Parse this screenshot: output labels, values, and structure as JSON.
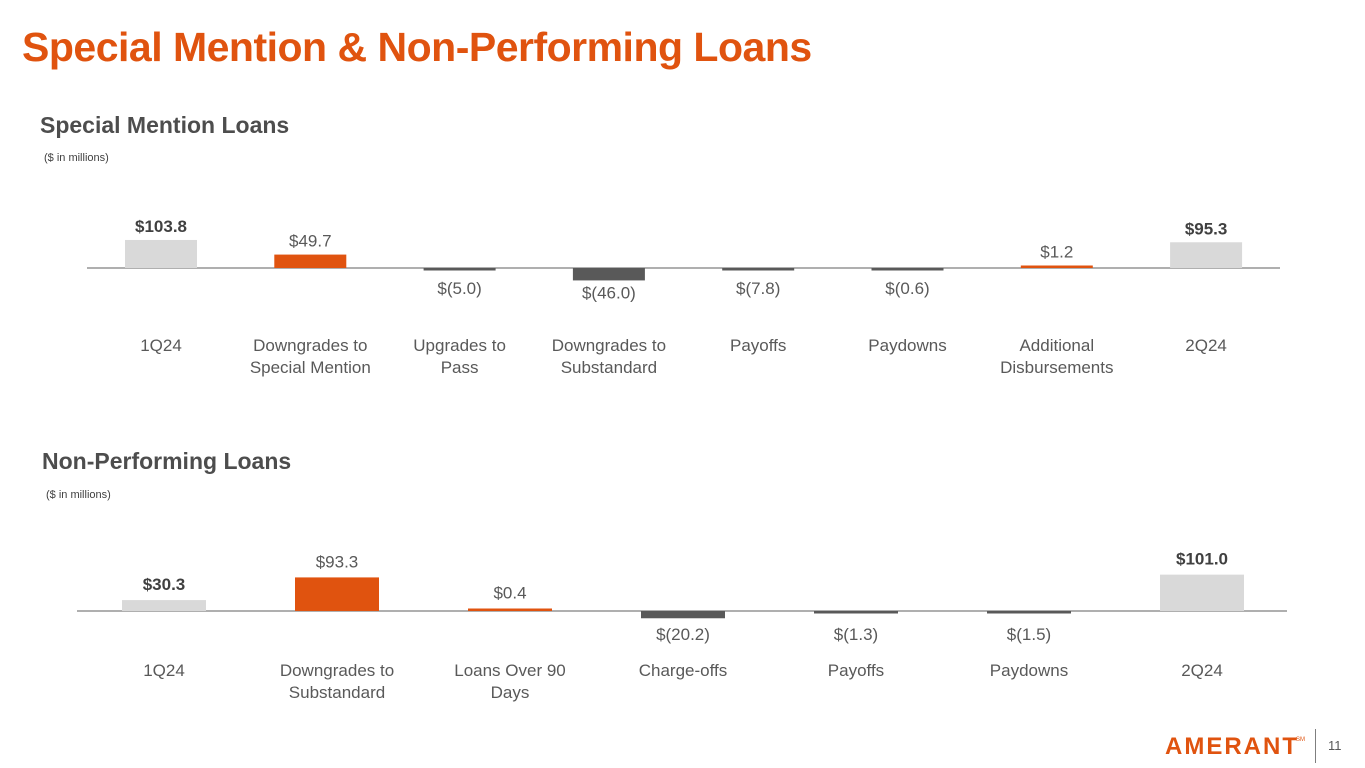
{
  "page": {
    "title": "Special Mention & Non-Performing Loans",
    "page_number": "11",
    "logo_text": "AMERANT",
    "logo_tm": "SM"
  },
  "colors": {
    "accent": "#e0530f",
    "total": "#d9d9d9",
    "decrease": "#595959",
    "baseline": "#7f7f7f",
    "text": "#595959"
  },
  "chart_data": [
    {
      "type": "bar",
      "variant": "waterfall-style",
      "title": "Special Mention Loans",
      "unit_note": "($ in millions)",
      "categories": [
        "1Q24",
        "Downgrades to Special Mention",
        "Upgrades to Pass",
        "Downgrades to Substandard",
        "Payoffs",
        "Paydowns",
        "Additional Disbursements",
        "2Q24"
      ],
      "category_lines": [
        [
          "1Q24"
        ],
        [
          "Downgrades to",
          "Special Mention"
        ],
        [
          "Upgrades to",
          "Pass"
        ],
        [
          "Downgrades to",
          "Substandard"
        ],
        [
          "Payoffs"
        ],
        [
          "Paydowns"
        ],
        [
          "Additional",
          "Disbursements"
        ],
        [
          "2Q24"
        ]
      ],
      "values": [
        103.8,
        49.7,
        -5.0,
        -46.0,
        -7.8,
        -0.6,
        1.2,
        95.3
      ],
      "labels": [
        "$103.8",
        "$49.7",
        "$(5.0)",
        "$(46.0)",
        "$(7.8)",
        "$(0.6)",
        "$1.2",
        "$95.3"
      ],
      "kinds": [
        "total",
        "increase",
        "decrease",
        "decrease",
        "decrease",
        "decrease",
        "increase",
        "total"
      ],
      "bold_labels": [
        true,
        false,
        false,
        false,
        false,
        false,
        false,
        true
      ]
    },
    {
      "type": "bar",
      "variant": "waterfall-style",
      "title": "Non-Performing Loans",
      "unit_note": "($ in millions)",
      "categories": [
        "1Q24",
        "Downgrades to Substandard",
        "Loans Over 90 Days",
        "Charge-offs",
        "Payoffs",
        "Paydowns",
        "2Q24"
      ],
      "category_lines": [
        [
          "1Q24"
        ],
        [
          "Downgrades to",
          "Substandard"
        ],
        [
          "Loans Over 90",
          "Days"
        ],
        [
          "Charge-offs"
        ],
        [
          "Payoffs"
        ],
        [
          "Paydowns"
        ],
        [
          "2Q24"
        ]
      ],
      "values": [
        30.3,
        93.3,
        0.4,
        -20.2,
        -1.3,
        -1.5,
        101.0
      ],
      "labels": [
        "$30.3",
        "$93.3",
        "$0.4",
        "$(20.2)",
        "$(1.3)",
        "$(1.5)",
        "$101.0"
      ],
      "kinds": [
        "total",
        "increase",
        "increase",
        "decrease",
        "decrease",
        "decrease",
        "total"
      ],
      "bold_labels": [
        true,
        false,
        false,
        false,
        false,
        false,
        true
      ]
    }
  ]
}
